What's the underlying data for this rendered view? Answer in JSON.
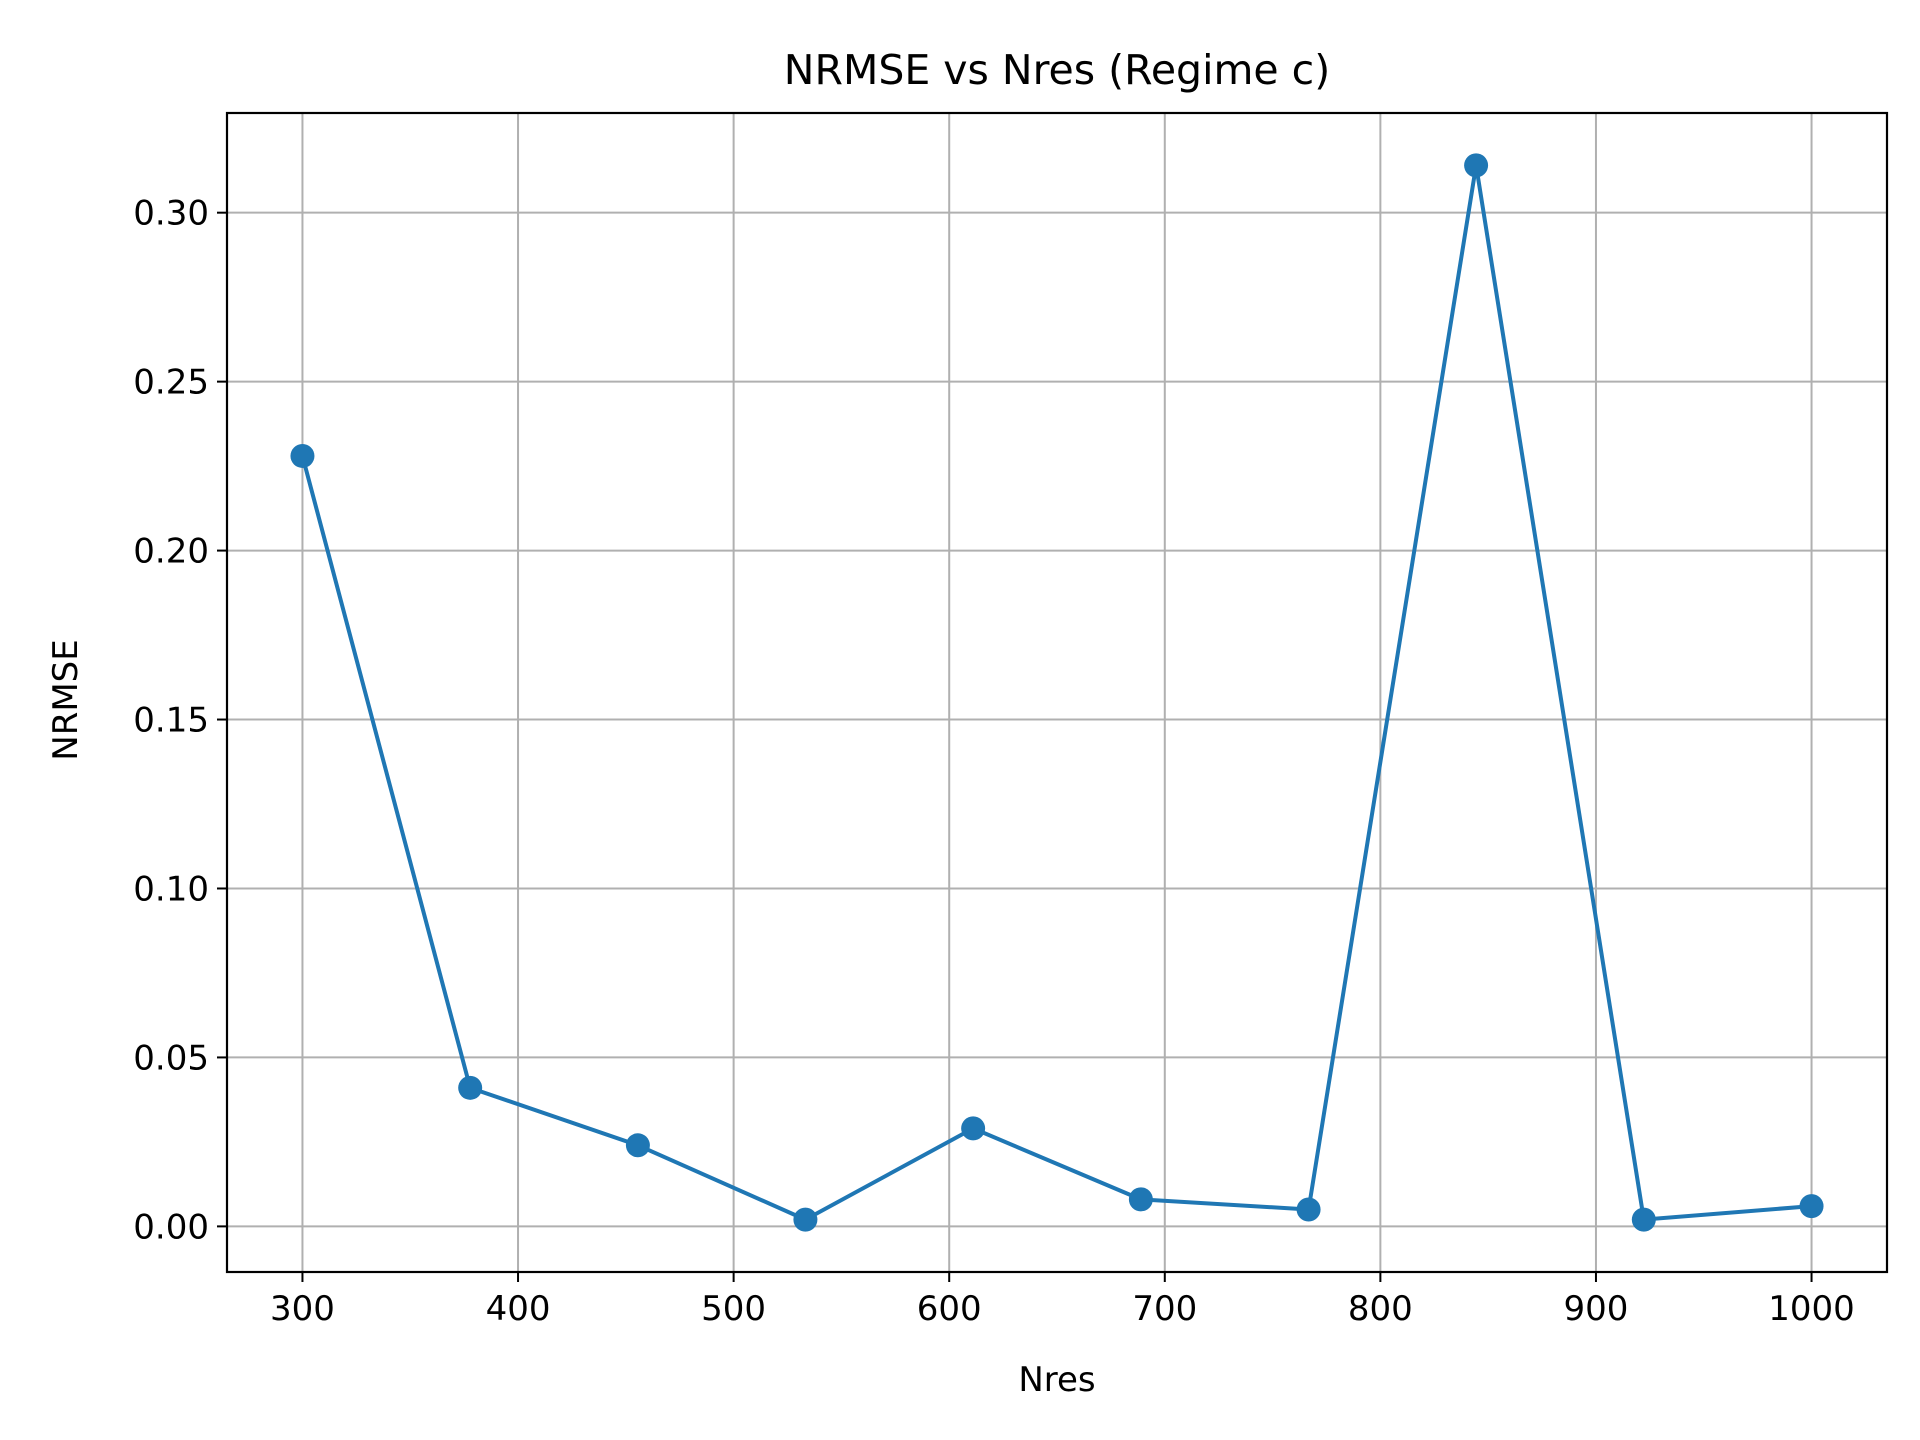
{
  "chart_data": {
    "type": "line",
    "title": "NRMSE vs Nres (Regime c)",
    "xlabel": "Nres",
    "ylabel": "NRMSE",
    "xlim": [
      265,
      1035
    ],
    "ylim": [
      -0.0135,
      0.3295
    ],
    "xticks": [
      300,
      400,
      500,
      600,
      700,
      800,
      900,
      1000
    ],
    "yticks": [
      0.0,
      0.05,
      0.1,
      0.15,
      0.2,
      0.25,
      0.3
    ],
    "ytick_labels": [
      "0.00",
      "0.05",
      "0.10",
      "0.15",
      "0.20",
      "0.25",
      "0.30"
    ],
    "grid": true,
    "series": [
      {
        "color": "#1f77b4",
        "marker": "circle",
        "x": [
          300,
          377.8,
          455.6,
          533.3,
          611.1,
          688.9,
          766.7,
          844.4,
          922.2,
          1000
        ],
        "y": [
          0.228,
          0.041,
          0.024,
          0.002,
          0.029,
          0.008,
          0.005,
          0.314,
          0.002,
          0.006
        ]
      }
    ]
  }
}
